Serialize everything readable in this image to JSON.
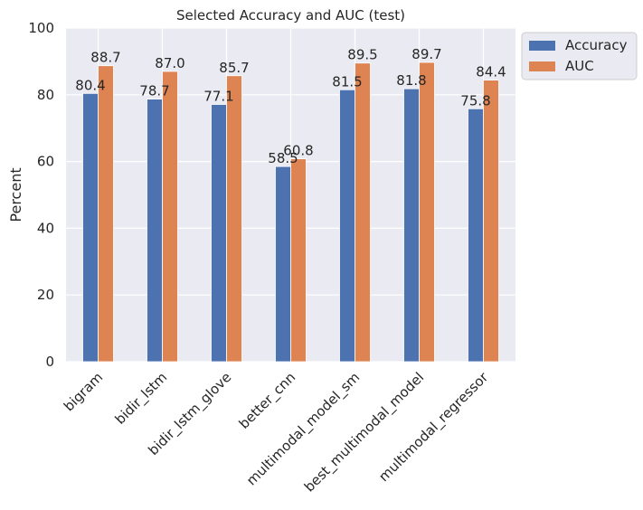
{
  "chart_data": {
    "type": "bar",
    "title": "Selected Accuracy and AUC (test)",
    "xlabel": "",
    "ylabel": "Percent",
    "ylim": [
      0,
      100
    ],
    "yticks": [
      "0",
      "20",
      "40",
      "60",
      "80",
      "100"
    ],
    "grid": true,
    "legend_position": "outside-top-right",
    "categories": [
      "bigram",
      "bidir_lstm",
      "bidir_lstm_glove",
      "better_cnn",
      "multimodal_model_sm",
      "best_multimodal_model",
      "multimodal_regressor"
    ],
    "series": [
      {
        "name": "Accuracy",
        "color": "#4c72b0",
        "values": [
          80.4,
          78.7,
          77.1,
          58.5,
          81.5,
          81.8,
          75.8
        ],
        "labels": [
          "80.4",
          "78.7",
          "77.1",
          "58.5",
          "81.5",
          "81.8",
          "75.8"
        ]
      },
      {
        "name": "AUC",
        "color": "#dd8452",
        "values": [
          88.7,
          87.0,
          85.7,
          60.8,
          89.5,
          89.7,
          84.4
        ],
        "labels": [
          "88.7",
          "87.0",
          "85.7",
          "60.8",
          "89.5",
          "89.7",
          "84.4"
        ]
      }
    ],
    "colors": {
      "plot_background": "#eaeaf2",
      "grid": "#ffffff"
    }
  }
}
